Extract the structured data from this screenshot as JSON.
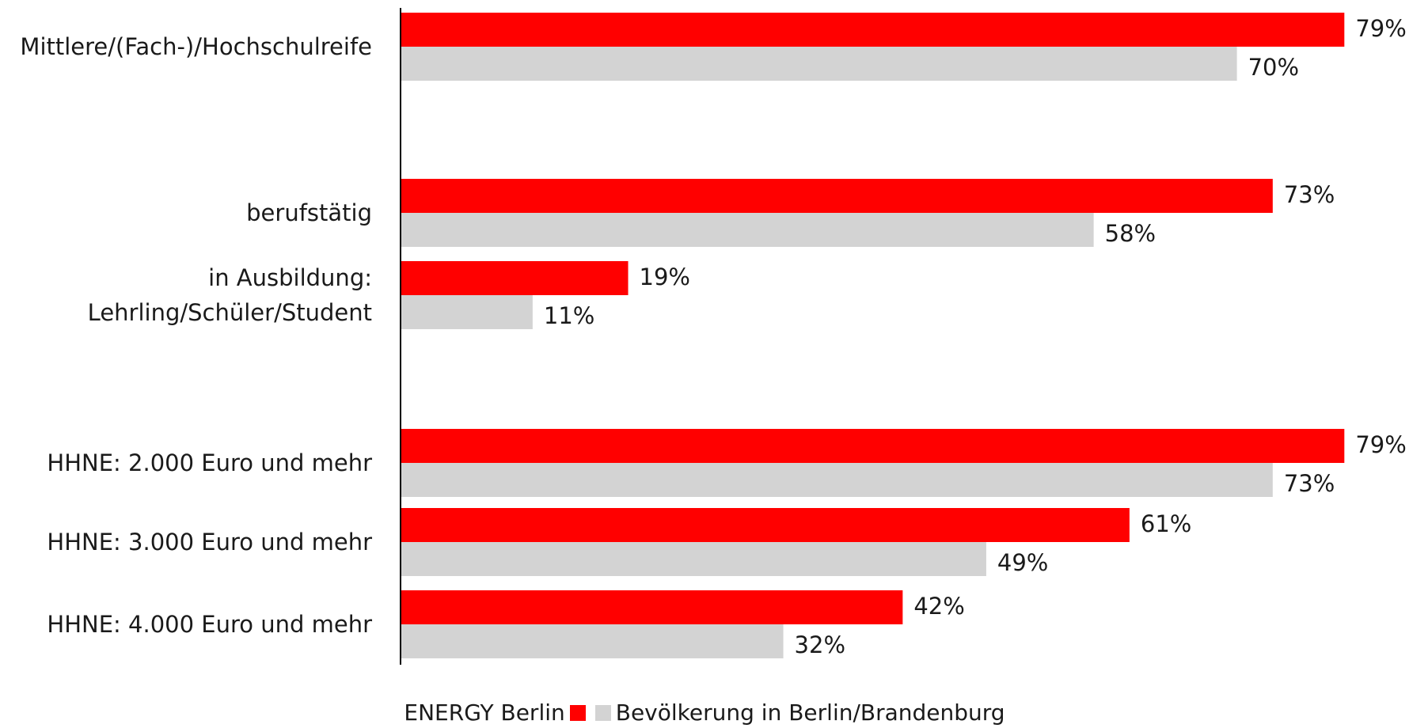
{
  "chart_data": {
    "type": "bar",
    "orientation": "horizontal",
    "categories": [
      "Mittlere/(Fach-)/Hochschulreife",
      "berufstätig",
      "in Ausbildung: Lehrling/Schüler/Student",
      "HHNE: 2.000 Euro und mehr",
      "HHNE: 3.000 Euro und mehr",
      "HHNE: 4.000 Euro und mehr"
    ],
    "category_label_lines": [
      [
        "Mittlere/(Fach-)/Hochschulreife"
      ],
      [
        "berufstätig"
      ],
      [
        "in Ausbildung:",
        "Lehrling/Schüler/Student"
      ],
      [
        "HHNE: 2.000 Euro und mehr"
      ],
      [
        "HHNE: 3.000 Euro und mehr"
      ],
      [
        "HHNE: 4.000 Euro und mehr"
      ]
    ],
    "series": [
      {
        "name": "ENERGY Berlin",
        "color": "#ff0000",
        "values": [
          79,
          73,
          19,
          79,
          61,
          42
        ]
      },
      {
        "name": "Bevölkerung in Berlin/Brandenburg",
        "color": "#d3d3d3",
        "values": [
          70,
          58,
          11,
          73,
          49,
          32
        ]
      }
    ],
    "value_labels": [
      [
        "79%",
        "73%",
        "19%",
        "79%",
        "61%",
        "42%"
      ],
      [
        "70%",
        "58%",
        "11%",
        "73%",
        "49%",
        "32%"
      ]
    ],
    "xlim": [
      0,
      79
    ],
    "unit": "%",
    "legend_position": "bottom-center",
    "grid": false
  }
}
